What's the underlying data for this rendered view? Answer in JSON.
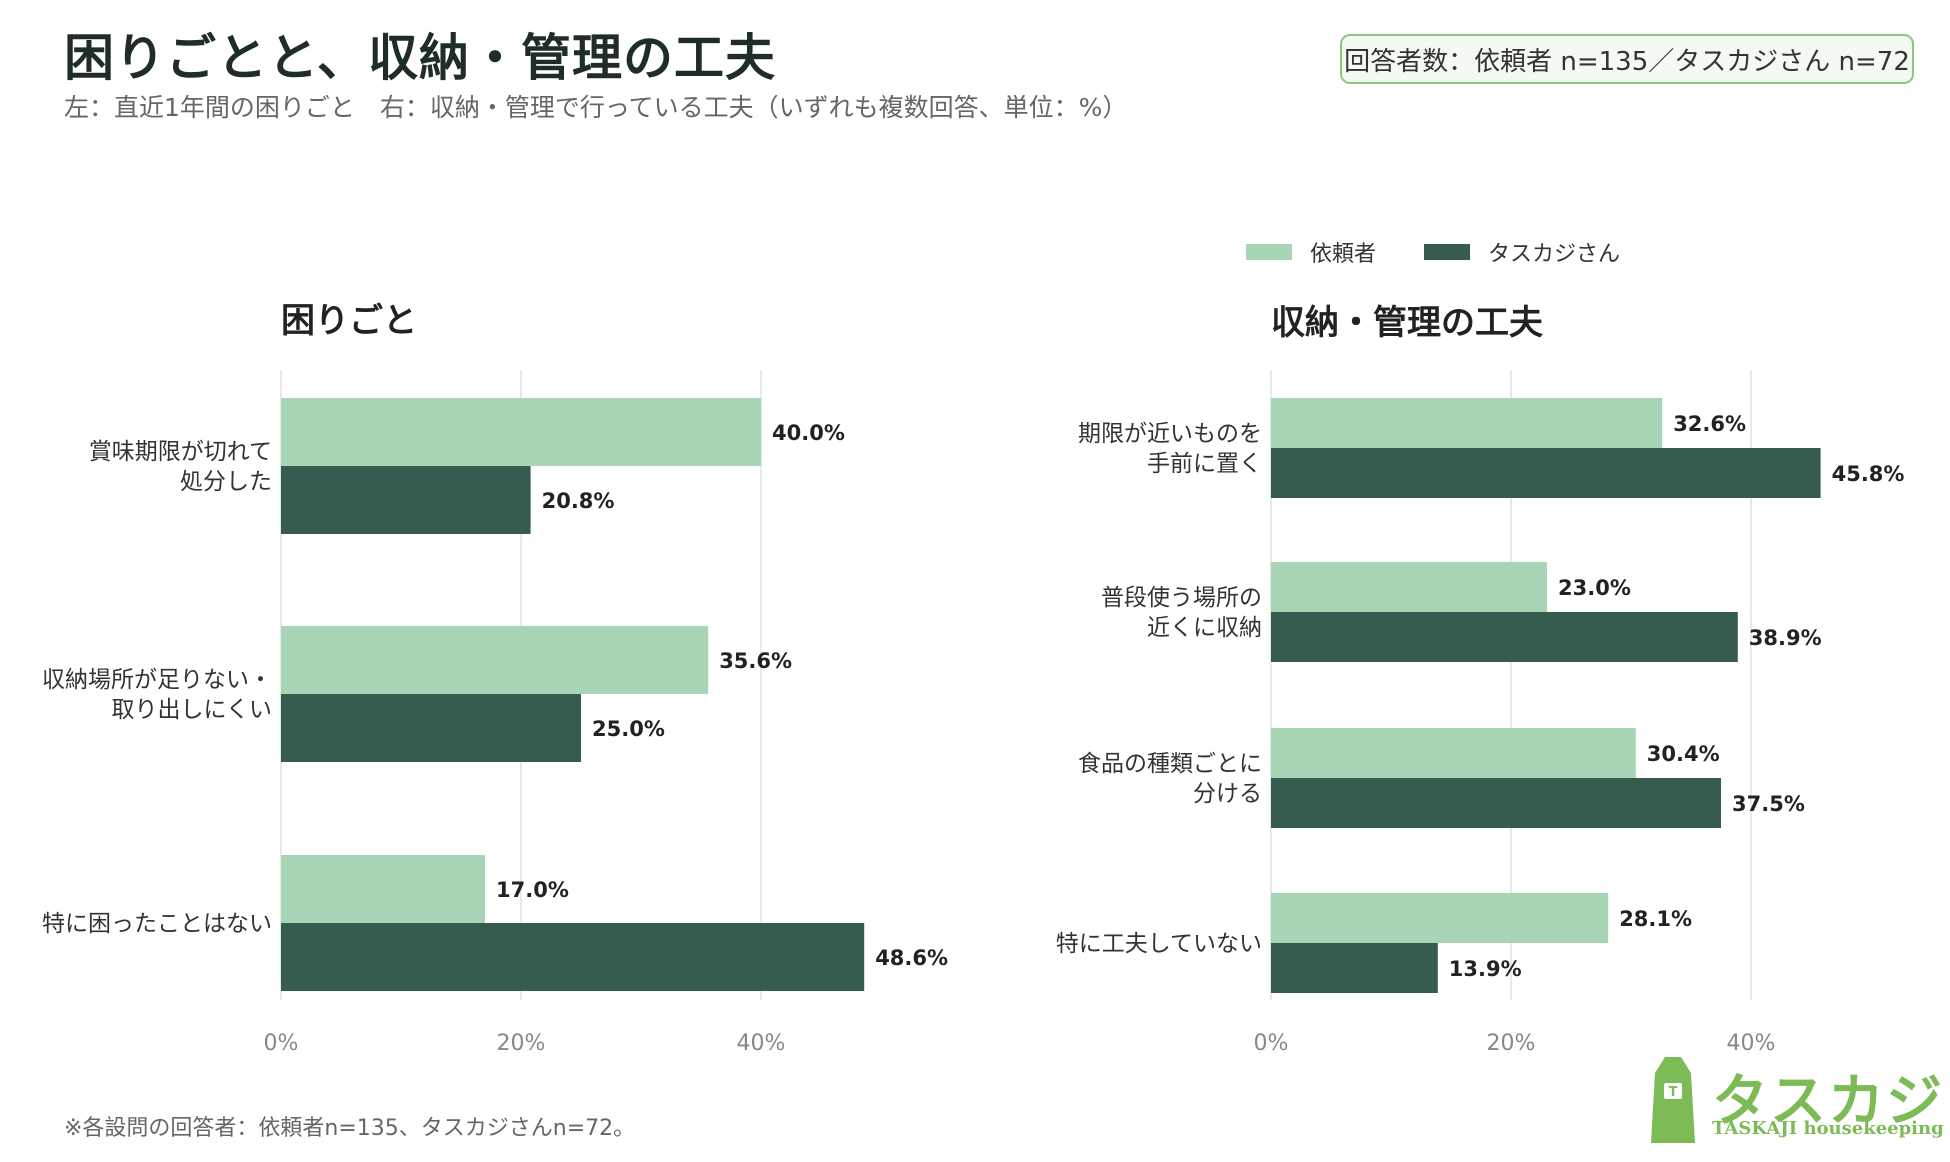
{
  "title": "困りごとと、収納・管理の工夫",
  "subtitle": "左：直近1年間の困りごと　右：収納・管理で行っている工夫（いずれも複数回答、単位：%）",
  "badge": "回答者数：依頼者 n=135／タスカジさん n=72",
  "legend": [
    {
      "name": "依頼者",
      "color": "#a9d5b7"
    },
    {
      "name": "タスカジさん",
      "color": "#355c4f"
    }
  ],
  "footnote": "※各設問の回答者：依頼者n=135、タスカジさんn=72。",
  "logo": {
    "text": "タスカジ",
    "sub": "TASKAJI housekeeping",
    "icon": "apron-icon",
    "color": "#7dbb57"
  },
  "chart_data": [
    {
      "type": "bar",
      "orientation": "horizontal",
      "title": "困りごと",
      "categories": [
        "賞味期限が切れて\n処分した",
        "収納場所が足りない・\n取り出しにくい",
        "特に困ったことはない"
      ],
      "series": [
        {
          "name": "依頼者",
          "values": [
            40.0,
            35.6,
            17.0
          ]
        },
        {
          "name": "タスカジさん",
          "values": [
            20.8,
            25.0,
            48.6
          ]
        }
      ],
      "xticks": [
        "0%",
        "20%",
        "40%"
      ],
      "xlim": [
        0,
        50
      ],
      "grid": true
    },
    {
      "type": "bar",
      "orientation": "horizontal",
      "title": "収納・管理の工夫",
      "categories": [
        "期限が近いものを\n手前に置く",
        "普段使う場所の\n近くに収納",
        "食品の種類ごとに\n分ける",
        "特に工夫していない"
      ],
      "series": [
        {
          "name": "依頼者",
          "values": [
            32.6,
            23.0,
            30.4,
            28.1
          ]
        },
        {
          "name": "タスカジさん",
          "values": [
            45.8,
            38.9,
            37.5,
            13.9
          ]
        }
      ],
      "xticks": [
        "0%",
        "20%",
        "40%"
      ],
      "xlim": [
        0,
        50
      ],
      "grid": true
    }
  ]
}
